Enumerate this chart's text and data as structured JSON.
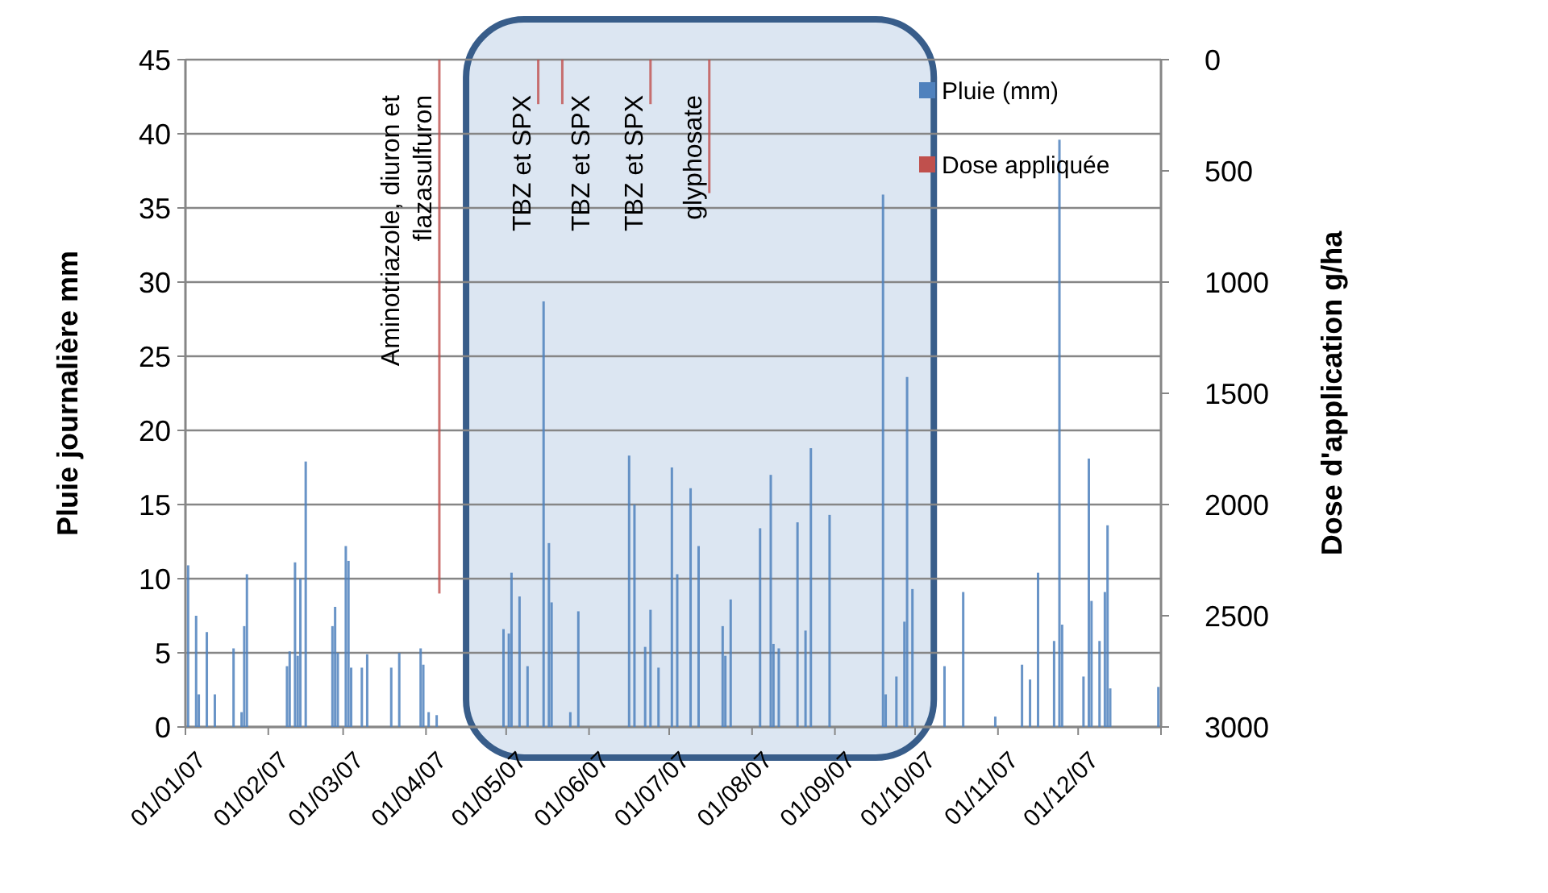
{
  "chart_data": {
    "type": "bar",
    "ylabel": "Pluie journalière mm",
    "y2label": "Dose d'application g/ha",
    "xlim": [
      "2007-01-01",
      "2008-01-01"
    ],
    "xticks": [
      {
        "value": "2007-01-01",
        "label": "01/01/07"
      },
      {
        "value": "2007-02-01",
        "label": "01/02/07"
      },
      {
        "value": "2007-03-01",
        "label": "01/03/07"
      },
      {
        "value": "2007-04-01",
        "label": "01/04/07"
      },
      {
        "value": "2007-05-01",
        "label": "01/05/07"
      },
      {
        "value": "2007-06-01",
        "label": "01/06/07"
      },
      {
        "value": "2007-07-01",
        "label": "01/07/07"
      },
      {
        "value": "2007-08-01",
        "label": "01/08/07"
      },
      {
        "value": "2007-09-01",
        "label": "01/09/07"
      },
      {
        "value": "2007-10-01",
        "label": "01/10/07"
      },
      {
        "value": "2007-11-01",
        "label": "01/11/07"
      },
      {
        "value": "2007-12-01",
        "label": "01/12/07"
      }
    ],
    "ylim": [
      0,
      45
    ],
    "yticks": [
      0,
      5,
      10,
      15,
      20,
      25,
      30,
      35,
      40,
      45
    ],
    "y2lim": [
      3000,
      0
    ],
    "y2ticks": [
      0,
      500,
      1000,
      1500,
      2000,
      2500,
      3000
    ],
    "grid": "y",
    "legend": "top right",
    "bands": [
      {
        "axis": "x",
        "from": "2007-04-16",
        "to": "2007-10-08",
        "color": "#dce6f2"
      }
    ],
    "series": [
      {
        "name": "Pluie (mm)",
        "color": "#4f81bd",
        "x": [
          "2007-01-02",
          "2007-01-05",
          "2007-01-06",
          "2007-01-09",
          "2007-01-12",
          "2007-01-19",
          "2007-01-22",
          "2007-01-23",
          "2007-01-24",
          "2007-02-08",
          "2007-02-09",
          "2007-02-11",
          "2007-02-12",
          "2007-02-13",
          "2007-02-15",
          "2007-02-25",
          "2007-02-26",
          "2007-02-27",
          "2007-03-02",
          "2007-03-03",
          "2007-03-04",
          "2007-03-08",
          "2007-03-10",
          "2007-03-19",
          "2007-03-22",
          "2007-03-30",
          "2007-03-31",
          "2007-04-02",
          "2007-04-05",
          "2007-04-30",
          "2007-05-02",
          "2007-05-03",
          "2007-05-06",
          "2007-05-09",
          "2007-05-15",
          "2007-05-17",
          "2007-05-18",
          "2007-05-25",
          "2007-05-28",
          "2007-06-16",
          "2007-06-18",
          "2007-06-22",
          "2007-06-24",
          "2007-06-27",
          "2007-07-02",
          "2007-07-04",
          "2007-07-09",
          "2007-07-12",
          "2007-07-21",
          "2007-07-22",
          "2007-07-24",
          "2007-08-04",
          "2007-08-08",
          "2007-08-09",
          "2007-08-11",
          "2007-08-18",
          "2007-08-21",
          "2007-08-23",
          "2007-08-30",
          "2007-09-19",
          "2007-09-20",
          "2007-09-24",
          "2007-09-27",
          "2007-09-28",
          "2007-09-30",
          "2007-10-12",
          "2007-10-19",
          "2007-10-31",
          "2007-11-10",
          "2007-11-13",
          "2007-11-16",
          "2007-11-22",
          "2007-11-24",
          "2007-11-25",
          "2007-12-03",
          "2007-12-05",
          "2007-12-06",
          "2007-12-09",
          "2007-12-11",
          "2007-12-12",
          "2007-12-13",
          "2007-12-31"
        ],
        "values": [
          10.9,
          7.5,
          2.2,
          6.4,
          2.2,
          5.3,
          1,
          6.8,
          10.3,
          4.1,
          5.1,
          11.1,
          4.8,
          10,
          17.9,
          6.8,
          8.1,
          5,
          12.2,
          11.2,
          4,
          4,
          4.9,
          4,
          5,
          5.3,
          4.2,
          1,
          0.8,
          6.6,
          6.3,
          10.4,
          8.8,
          4.1,
          28.7,
          12.4,
          8.4,
          1,
          7.8,
          18.3,
          15,
          5.4,
          7.9,
          4,
          17.5,
          10.3,
          16.1,
          12.2,
          6.8,
          4.8,
          8.6,
          13.4,
          17,
          5.6,
          5.3,
          13.8,
          6.5,
          18.8,
          14.3,
          35.9,
          2.2,
          3.4,
          7.1,
          23.6,
          9.3,
          4.1,
          9.1,
          0.7,
          4.2,
          3.2,
          10.4,
          5.8,
          39.6,
          6.9,
          3.4,
          18.1,
          8.5,
          5.8,
          9.1,
          13.6,
          2.6,
          2.7
        ]
      },
      {
        "name": "Dose appliquée",
        "color": "#c0504d",
        "axis": "y2",
        "x": [
          "2007-04-06",
          "2007-05-13",
          "2007-05-22",
          "2007-06-24",
          "2007-07-16"
        ],
        "values": [
          2400,
          200,
          200,
          200,
          600
        ]
      }
    ],
    "annotations": [
      "Aminotriazole, diuron et flazasulfuron",
      "TBZ et SPX",
      "TBZ et SPX",
      "TBZ et SPX",
      "glyphosate"
    ]
  }
}
